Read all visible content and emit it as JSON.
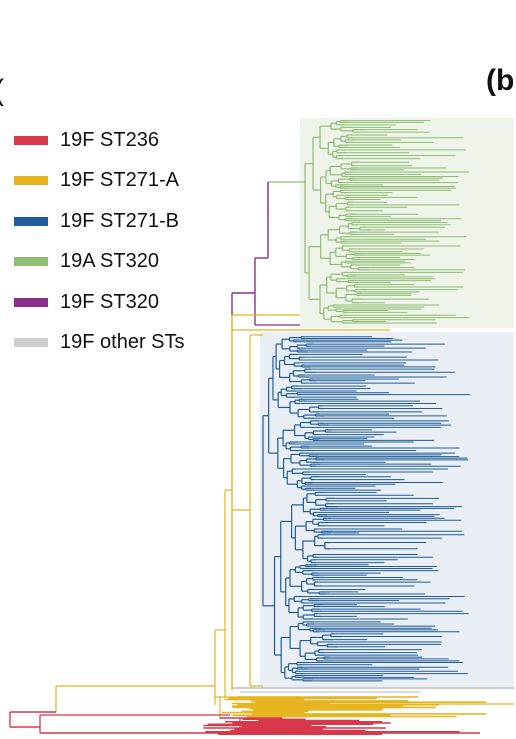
{
  "figure": {
    "panel_label": "(b",
    "prev_panel_label": "(",
    "legend": [
      {
        "label": "19F ST236",
        "color": "#d7384a",
        "key": "st236"
      },
      {
        "label": "19F ST271-A",
        "color": "#e6b41f",
        "key": "st271a"
      },
      {
        "label": "19F ST271-B",
        "color": "#1f5c99",
        "key": "st271b"
      },
      {
        "label": "19A ST320",
        "color": "#8fbd72",
        "key": "st320a"
      },
      {
        "label": "19F ST320",
        "color": "#8b2f8c",
        "key": "st320f"
      },
      {
        "label": "19F other STs",
        "color": "#cfcfcf",
        "key": "other"
      }
    ],
    "clade_backgrounds": {
      "st320a": "#eef4ea",
      "st271b": "#e9eff5"
    }
  }
}
